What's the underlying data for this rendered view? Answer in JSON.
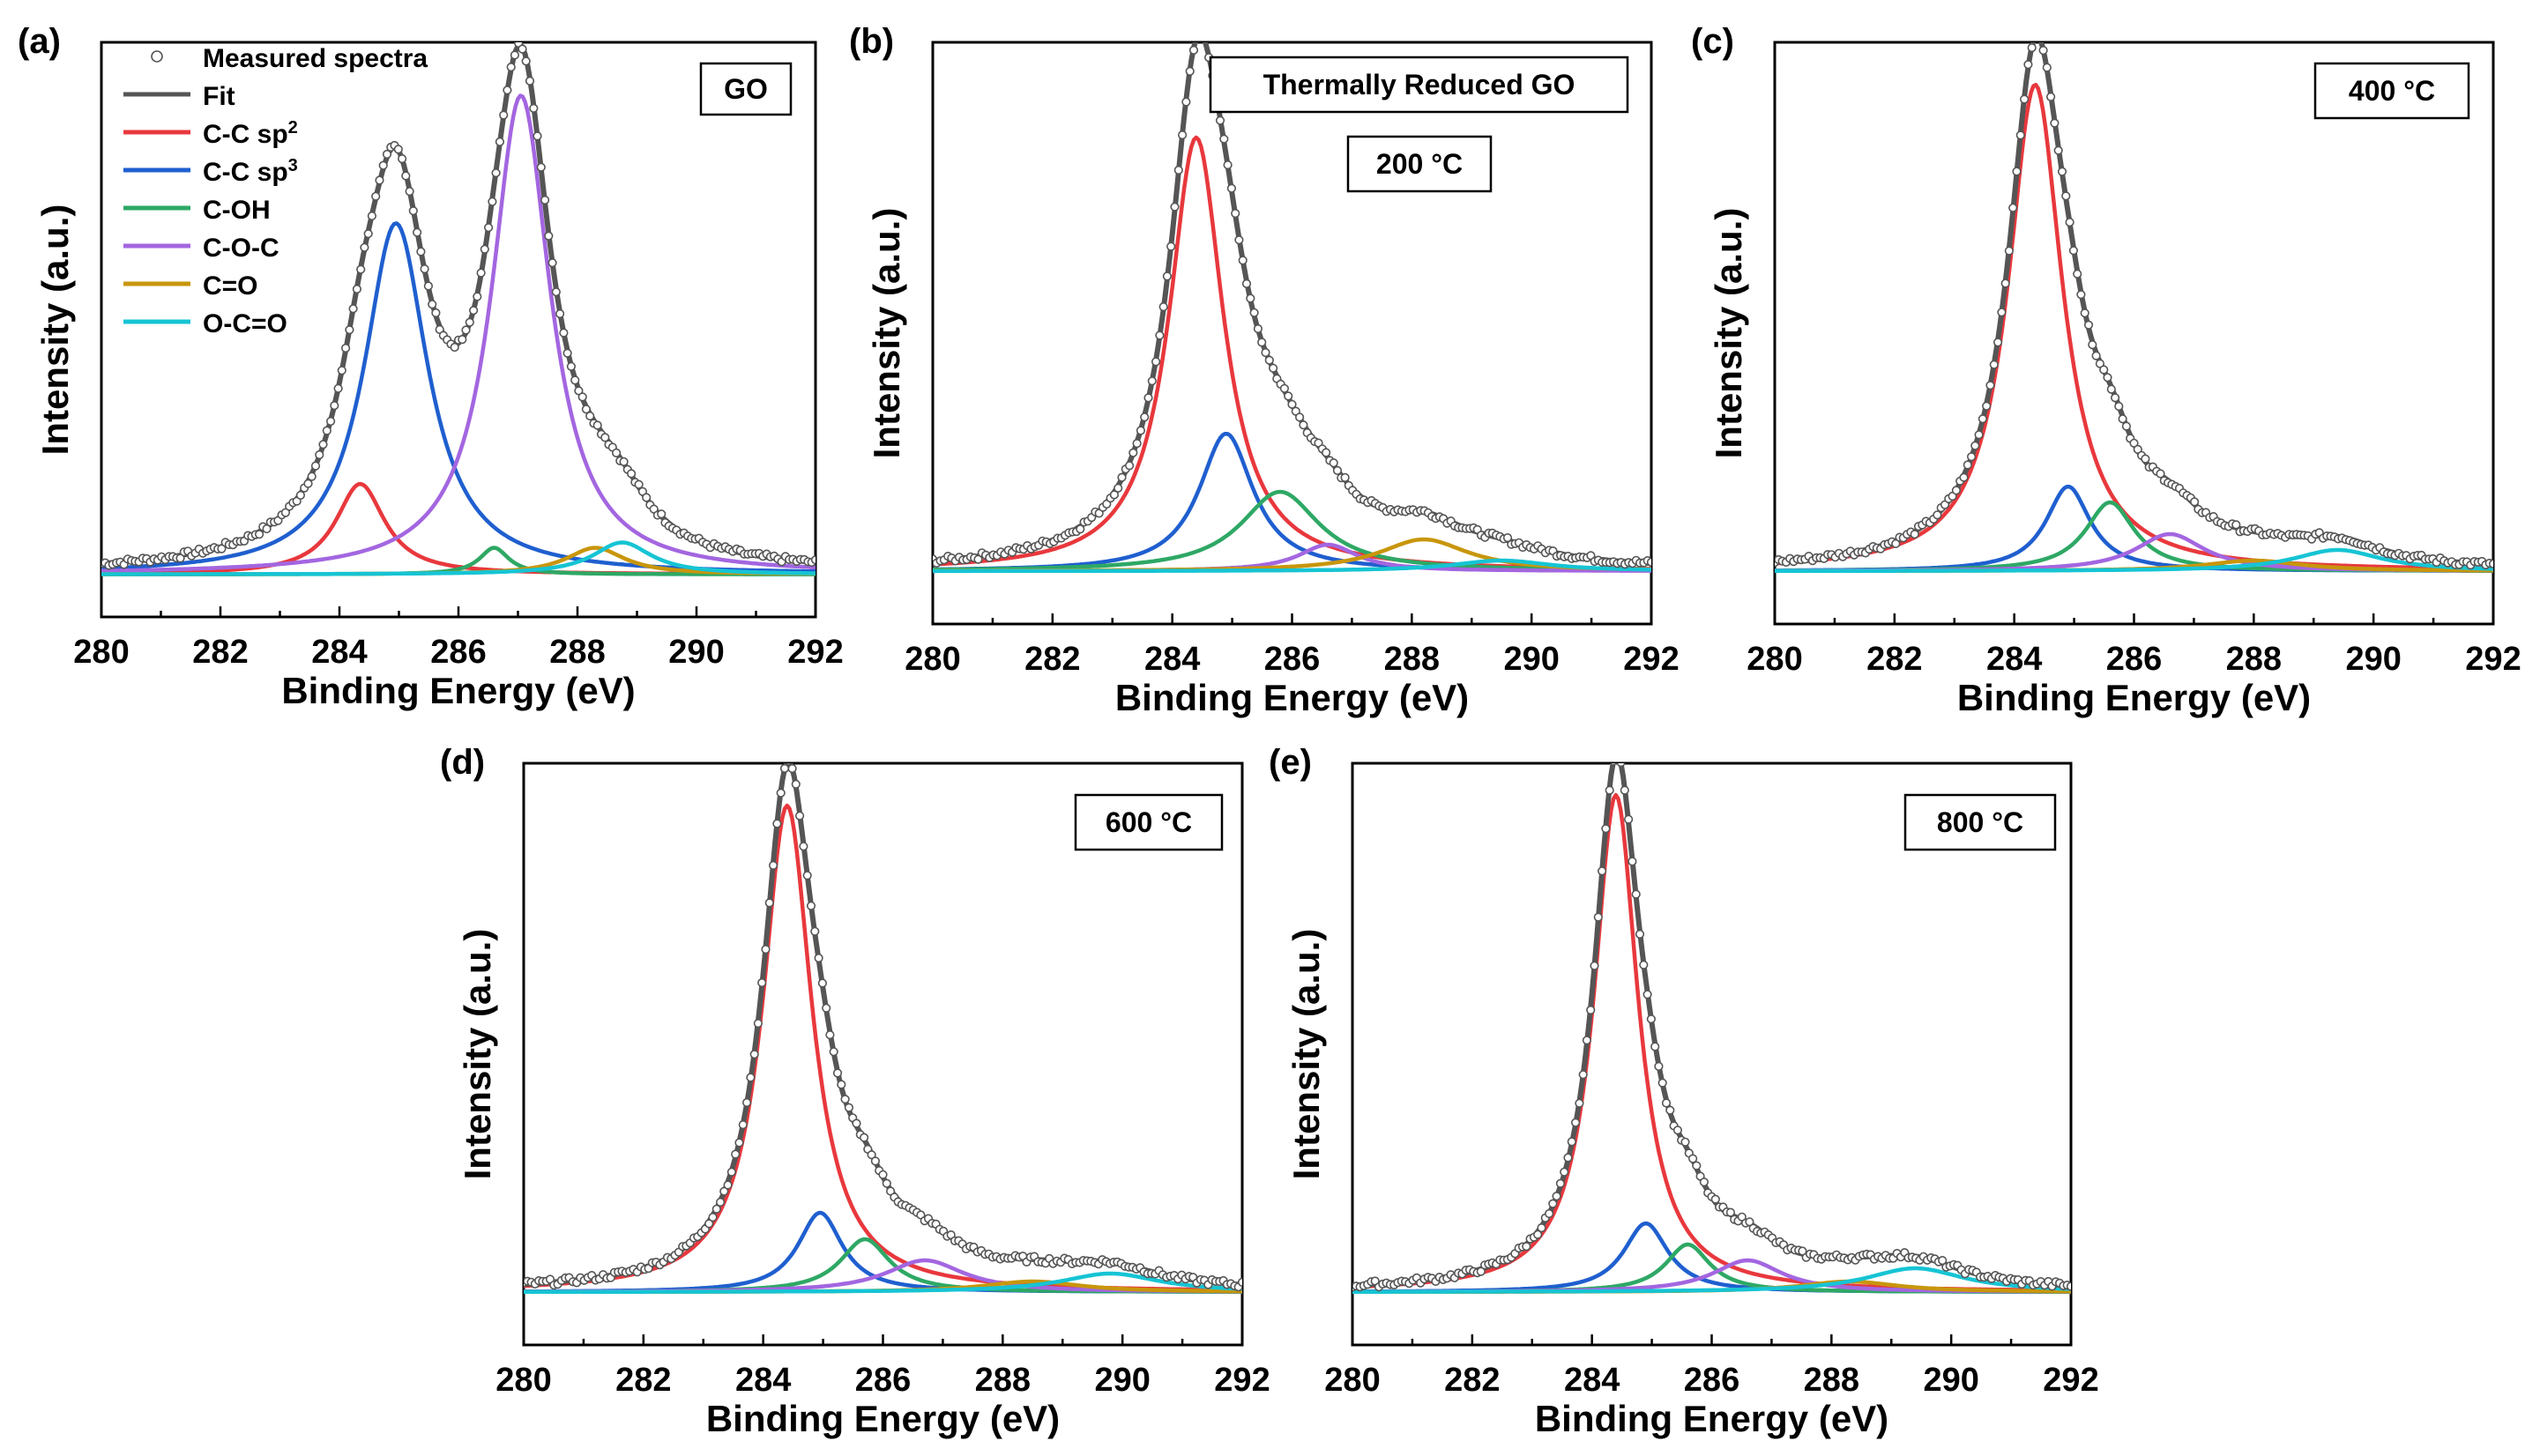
{
  "chart_data": [
    {
      "type": "line",
      "panel": "(a)",
      "annotation": "GO",
      "annotation2": "",
      "xlabel": "Binding Energy (eV)",
      "ylabel": "Intensity (a.u.)",
      "xlim": [
        280,
        292
      ],
      "ylim": [
        -0.08,
        1.0
      ],
      "xticks": [
        "280",
        "282",
        "284",
        "286",
        "288",
        "290",
        "292"
      ],
      "legend": {
        "position": "top-left",
        "entries": [
          {
            "label": "Measured spectra",
            "marker": "open-circle"
          },
          {
            "label": "Fit",
            "color": "#555555"
          },
          {
            "label": "C-C sp",
            "sup": "2",
            "color": "#e8383d"
          },
          {
            "label": "C-C sp",
            "sup": "3",
            "color": "#1f5fcf"
          },
          {
            "label": "C-OH",
            "color": "#2ea865"
          },
          {
            "label": "C-O-C",
            "color": "#a366e0"
          },
          {
            "label": "C=O",
            "color": "#c8960c"
          },
          {
            "label": "O-C=O",
            "color": "#16c4d4"
          }
        ]
      },
      "series": [
        {
          "name": "C-C sp2",
          "color": "#e8383d",
          "center": 284.35,
          "height": 0.17,
          "width": 0.5
        },
        {
          "name": "C-C sp3",
          "color": "#1f5fcf",
          "center": 284.95,
          "height": 0.66,
          "width": 0.65
        },
        {
          "name": "C-OH",
          "color": "#2ea865",
          "center": 286.6,
          "height": 0.05,
          "width": 0.3
        },
        {
          "name": "C-O-C",
          "color": "#a366e0",
          "center": 287.05,
          "height": 0.9,
          "width": 0.6
        },
        {
          "name": "C=O",
          "color": "#c8960c",
          "center": 288.3,
          "height": 0.05,
          "width": 0.6
        },
        {
          "name": "O-C=O",
          "color": "#16c4d4",
          "center": 288.75,
          "height": 0.06,
          "width": 0.6
        }
      ]
    },
    {
      "type": "line",
      "panel": "(b)",
      "annotation": "Thermally Reduced GO",
      "annotation2": "200 °C",
      "xlabel": "Binding Energy (eV)",
      "ylabel": "Intensity (a.u.)",
      "xlim": [
        280,
        292
      ],
      "ylim": [
        -0.1,
        1.0
      ],
      "xticks": [
        "280",
        "282",
        "284",
        "286",
        "288",
        "290",
        "292"
      ],
      "series": [
        {
          "name": "C-C sp2",
          "color": "#e8383d",
          "center": 284.4,
          "height": 0.82,
          "width": 0.55
        },
        {
          "name": "C-C sp3",
          "color": "#1f5fcf",
          "center": 284.9,
          "height": 0.26,
          "width": 0.55
        },
        {
          "name": "C-OH",
          "color": "#2ea865",
          "center": 285.8,
          "height": 0.15,
          "width": 0.8
        },
        {
          "name": "C-O-C",
          "color": "#a366e0",
          "center": 286.6,
          "height": 0.05,
          "width": 0.6
        },
        {
          "name": "C=O",
          "color": "#c8960c",
          "center": 288.2,
          "height": 0.06,
          "width": 0.9
        },
        {
          "name": "O-C=O",
          "color": "#16c4d4",
          "center": 289.5,
          "height": 0.02,
          "width": 1.0
        }
      ]
    },
    {
      "type": "line",
      "panel": "(c)",
      "annotation": "400 °C",
      "annotation2": "",
      "xlabel": "Binding Energy (eV)",
      "ylabel": "Intensity (a.u.)",
      "xlim": [
        280,
        292
      ],
      "ylim": [
        -0.1,
        1.0
      ],
      "xticks": [
        "280",
        "282",
        "284",
        "286",
        "288",
        "290",
        "292"
      ],
      "series": [
        {
          "name": "C-C sp2",
          "color": "#e8383d",
          "center": 284.35,
          "height": 0.92,
          "width": 0.55
        },
        {
          "name": "C-C sp3",
          "color": "#1f5fcf",
          "center": 284.9,
          "height": 0.16,
          "width": 0.45
        },
        {
          "name": "C-OH",
          "color": "#2ea865",
          "center": 285.6,
          "height": 0.13,
          "width": 0.5
        },
        {
          "name": "C-O-C",
          "color": "#a366e0",
          "center": 286.6,
          "height": 0.07,
          "width": 0.7
        },
        {
          "name": "C=O",
          "color": "#c8960c",
          "center": 288.0,
          "height": 0.02,
          "width": 1.0
        },
        {
          "name": "O-C=O",
          "color": "#16c4d4",
          "center": 289.4,
          "height": 0.04,
          "width": 0.9
        }
      ]
    },
    {
      "type": "line",
      "panel": "(d)",
      "annotation": "600 °C",
      "annotation2": "",
      "xlabel": "Binding Energy (eV)",
      "ylabel": "Intensity (a.u.)",
      "xlim": [
        280,
        292
      ],
      "ylim": [
        -0.1,
        1.0
      ],
      "xticks": [
        "280",
        "282",
        "284",
        "286",
        "288",
        "290",
        "292"
      ],
      "series": [
        {
          "name": "C-C sp2",
          "color": "#e8383d",
          "center": 284.4,
          "height": 0.92,
          "width": 0.5
        },
        {
          "name": "C-C sp3",
          "color": "#1f5fcf",
          "center": 284.95,
          "height": 0.15,
          "width": 0.45
        },
        {
          "name": "C-OH",
          "color": "#2ea865",
          "center": 285.7,
          "height": 0.1,
          "width": 0.5
        },
        {
          "name": "C-O-C",
          "color": "#a366e0",
          "center": 286.7,
          "height": 0.06,
          "width": 0.8
        },
        {
          "name": "C=O",
          "color": "#c8960c",
          "center": 288.5,
          "height": 0.02,
          "width": 1.0
        },
        {
          "name": "O-C=O",
          "color": "#16c4d4",
          "center": 289.8,
          "height": 0.035,
          "width": 1.0
        }
      ]
    },
    {
      "type": "line",
      "panel": "(e)",
      "annotation": "800 °C",
      "annotation2": "",
      "xlabel": "Binding Energy (eV)",
      "ylabel": "Intensity (a.u.)",
      "xlim": [
        280,
        292
      ],
      "ylim": [
        -0.1,
        1.0
      ],
      "xticks": [
        "280",
        "282",
        "284",
        "286",
        "288",
        "290",
        "292"
      ],
      "series": [
        {
          "name": "C-C sp2",
          "color": "#e8383d",
          "center": 284.4,
          "height": 0.94,
          "width": 0.45
        },
        {
          "name": "C-C sp3",
          "color": "#1f5fcf",
          "center": 284.9,
          "height": 0.13,
          "width": 0.45
        },
        {
          "name": "C-OH",
          "color": "#2ea865",
          "center": 285.6,
          "height": 0.09,
          "width": 0.45
        },
        {
          "name": "C-O-C",
          "color": "#a366e0",
          "center": 286.6,
          "height": 0.06,
          "width": 0.7
        },
        {
          "name": "C=O",
          "color": "#c8960c",
          "center": 288.3,
          "height": 0.02,
          "width": 1.0
        },
        {
          "name": "O-C=O",
          "color": "#16c4d4",
          "center": 289.4,
          "height": 0.045,
          "width": 1.0
        }
      ]
    }
  ]
}
